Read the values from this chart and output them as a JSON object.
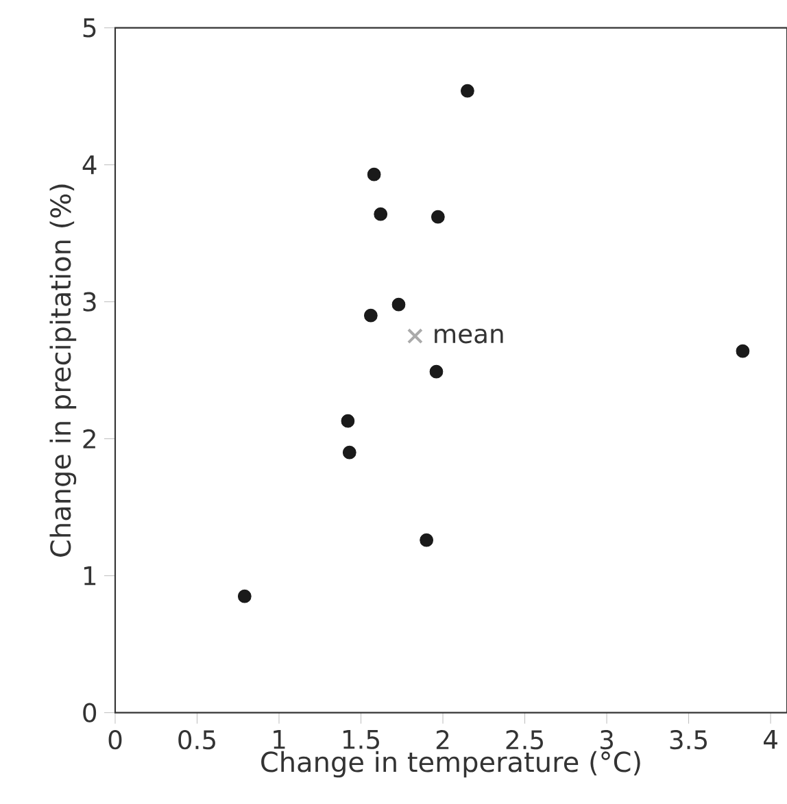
{
  "chart_data": {
    "type": "scatter",
    "xlabel": "Change in temperature (°C)",
    "ylabel": "Change in precipitation (%)",
    "xlim": [
      0,
      4.1
    ],
    "ylim": [
      0,
      5
    ],
    "xticks": [
      0,
      0.5,
      1,
      1.5,
      2,
      2.5,
      3,
      3.5,
      4
    ],
    "yticks": [
      0,
      1,
      2,
      3,
      4,
      5
    ],
    "grid": false,
    "series": [
      {
        "color": "#1a1a1a",
        "marker": "circle",
        "x": [
          0.79,
          1.42,
          1.43,
          1.56,
          1.58,
          1.62,
          1.73,
          1.9,
          1.96,
          1.97,
          2.15,
          3.83
        ],
        "values": [
          0.85,
          2.13,
          1.9,
          2.9,
          3.93,
          3.64,
          2.98,
          1.26,
          2.49,
          3.62,
          4.54,
          2.64
        ]
      },
      {
        "name": "mean",
        "color": "#aaaaaa",
        "marker": "cross",
        "x": [
          1.83
        ],
        "values": [
          2.75
        ]
      }
    ]
  }
}
